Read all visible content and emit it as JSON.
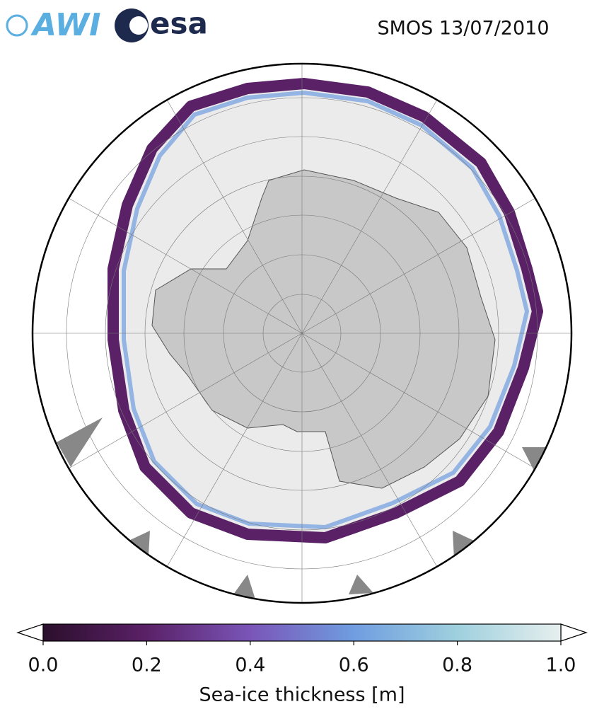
{
  "header": {
    "title": "SMOS 13/07/2010",
    "logos": [
      "AWI",
      "esa"
    ]
  },
  "colorbar": {
    "label": "Sea-ice thickness [m]",
    "lim": [
      0,
      1
    ],
    "ticks": [
      {
        "value": 0,
        "label": "0.0"
      },
      0.2,
      0.4,
      0.6,
      0.8,
      {
        "value": 1,
        "label": "1.0"
      }
    ],
    "colors": [
      "#2b0f2c",
      "#5a2167",
      "#7a55b8",
      "#6f9de0",
      "#9fd0de",
      "#e6efee"
    ]
  }
}
